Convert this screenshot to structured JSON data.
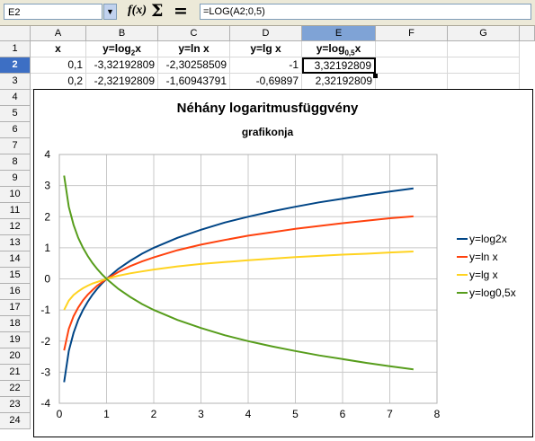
{
  "formula_bar": {
    "cell_ref": "E2",
    "fx_label": "f(x)",
    "sigma_label": "Σ",
    "equals_label": "=",
    "formula": "=LOG(A2;0,5)"
  },
  "sheet": {
    "columns": [
      "A",
      "B",
      "C",
      "D",
      "E",
      "F",
      "G"
    ],
    "selected_column": "E",
    "rows": [
      "1",
      "2",
      "3",
      "4",
      "5",
      "6",
      "7",
      "8",
      "9",
      "10",
      "11",
      "12",
      "13",
      "14",
      "15",
      "16",
      "17",
      "18",
      "19",
      "20",
      "21",
      "22",
      "23",
      "24"
    ],
    "selected_row": "2",
    "header_row": {
      "a": "x",
      "b_main": "y=log",
      "b_sub": "2",
      "b_tail": "x",
      "c": "y=ln x",
      "d": "y=lg x",
      "e_main": "y=log",
      "e_sub": "0,5",
      "e_tail": "x"
    },
    "row2": {
      "a": "0,1",
      "b": "-3,32192809",
      "c": "-2,30258509",
      "d": "-1",
      "e": "3,32192809"
    },
    "row3": {
      "a": "0,2",
      "b": "-2,32192809",
      "c": "-1,60943791",
      "d": "-0,69897",
      "e": "2,32192809"
    }
  },
  "chart_data": {
    "type": "line",
    "title": "Néhány logaritmusfüggvény",
    "subtitle": "grafikonja",
    "xlim": [
      0,
      8
    ],
    "ylim": [
      -4,
      4
    ],
    "x_ticks": [
      "0",
      "1",
      "2",
      "3",
      "4",
      "5",
      "6",
      "7",
      "8"
    ],
    "y_ticks": [
      "4",
      "3",
      "2",
      "1",
      "0",
      "-1",
      "-2",
      "-3",
      "-4"
    ],
    "grid": true,
    "legend_position": "right",
    "x": [
      0.1,
      0.2,
      0.3,
      0.4,
      0.5,
      0.6,
      0.7,
      0.8,
      0.9,
      1.0,
      1.25,
      1.5,
      1.75,
      2.0,
      2.5,
      3.0,
      3.5,
      4.0,
      4.5,
      5.0,
      5.5,
      6.0,
      6.5,
      7.0,
      7.5
    ],
    "series": [
      {
        "name": "y=log2x",
        "color": "#004586",
        "values": [
          -3.32,
          -2.32,
          -1.74,
          -1.32,
          -1.0,
          -0.74,
          -0.51,
          -0.32,
          -0.15,
          0.0,
          0.32,
          0.58,
          0.81,
          1.0,
          1.32,
          1.58,
          1.81,
          2.0,
          2.17,
          2.32,
          2.46,
          2.58,
          2.7,
          2.81,
          2.91
        ]
      },
      {
        "name": "y=ln x",
        "color": "#ff420e",
        "values": [
          -2.3,
          -1.61,
          -1.2,
          -0.92,
          -0.69,
          -0.51,
          -0.36,
          -0.22,
          -0.11,
          0.0,
          0.22,
          0.41,
          0.56,
          0.69,
          0.92,
          1.1,
          1.25,
          1.39,
          1.5,
          1.61,
          1.7,
          1.79,
          1.87,
          1.95,
          2.01
        ]
      },
      {
        "name": "y=lg x",
        "color": "#ffd320",
        "values": [
          -1.0,
          -0.7,
          -0.52,
          -0.4,
          -0.3,
          -0.22,
          -0.15,
          -0.1,
          -0.05,
          0.0,
          0.1,
          0.18,
          0.24,
          0.3,
          0.4,
          0.48,
          0.54,
          0.6,
          0.65,
          0.7,
          0.74,
          0.78,
          0.81,
          0.85,
          0.88
        ]
      },
      {
        "name": "y=log0,5x",
        "color": "#579d1c",
        "values": [
          3.32,
          2.32,
          1.74,
          1.32,
          1.0,
          0.74,
          0.51,
          0.32,
          0.15,
          0.0,
          -0.32,
          -0.58,
          -0.81,
          -1.0,
          -1.32,
          -1.58,
          -1.81,
          -2.0,
          -2.17,
          -2.32,
          -2.46,
          -2.58,
          -2.7,
          -2.81,
          -2.91
        ]
      }
    ]
  }
}
